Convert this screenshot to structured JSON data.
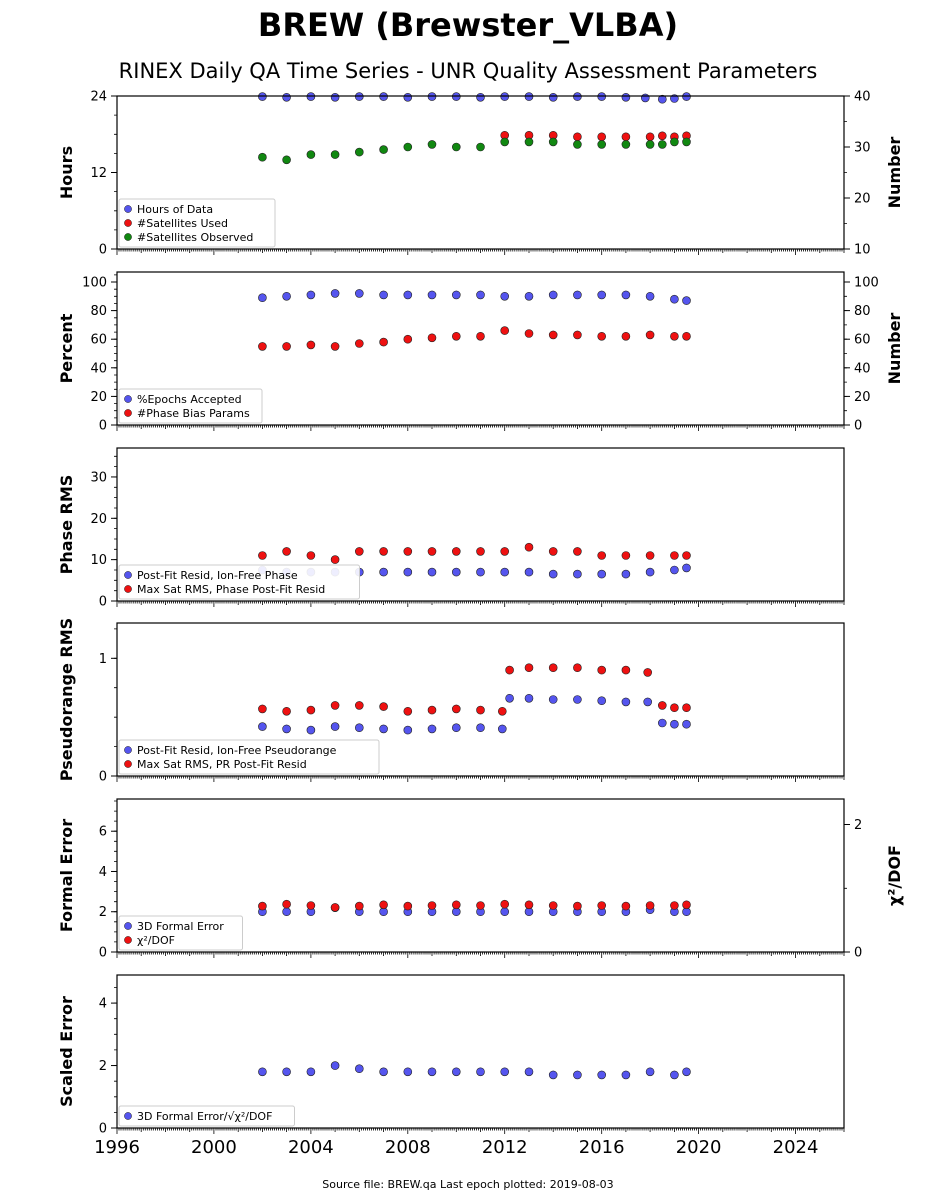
{
  "title": "BREW (Brewster_VLBA)",
  "subtitle": "RINEX Daily QA Time Series - UNR Quality Assessment Parameters",
  "footer": "Source file: BREW.qa Last epoch plotted: 2019-08-03",
  "colors": {
    "blue": "#5555ee",
    "red": "#ee1111",
    "green": "#118811",
    "edge": "#222222"
  },
  "chart_data": [
    {
      "type": "scatter",
      "ylabel": "Hours",
      "y2label": "Number",
      "xlim": [
        1996,
        2026
      ],
      "ylim": [
        0,
        24
      ],
      "y2lim": [
        10,
        40
      ],
      "yticks": [
        0,
        12,
        24
      ],
      "y2ticks": [
        10,
        20,
        30,
        40
      ],
      "legend": "lower-left",
      "series": [
        {
          "name": "Hours of Data",
          "color": "blue",
          "axis": "left",
          "x": [
            2002.0,
            2003.0,
            2004.0,
            2005.0,
            2006.0,
            2007.0,
            2008.0,
            2009.0,
            2010.0,
            2011.0,
            2012.0,
            2013.0,
            2014.0,
            2015.0,
            2016.0,
            2017.0,
            2017.8,
            2018.5,
            2019.0,
            2019.5
          ],
          "y": [
            23.9,
            23.8,
            23.9,
            23.8,
            23.9,
            23.9,
            23.8,
            23.9,
            23.9,
            23.8,
            23.9,
            23.9,
            23.8,
            23.9,
            23.9,
            23.8,
            23.7,
            23.5,
            23.6,
            23.9
          ]
        },
        {
          "name": "#Satellites Used",
          "color": "red",
          "axis": "right",
          "x": [
            2012.0,
            2013.0,
            2014.0,
            2015.0,
            2016.0,
            2017.0,
            2018.0,
            2018.5,
            2019.0,
            2019.5
          ],
          "y": [
            32.3,
            32.3,
            32.3,
            32.0,
            32.0,
            32.0,
            32.0,
            32.2,
            32.0,
            32.2
          ]
        },
        {
          "name": "#Satellites Observed",
          "color": "green",
          "axis": "right",
          "x": [
            2002.0,
            2003.0,
            2004.0,
            2005.0,
            2006.0,
            2007.0,
            2008.0,
            2009.0,
            2010.0,
            2011.0,
            2012.0,
            2013.0,
            2014.0,
            2015.0,
            2016.0,
            2017.0,
            2018.0,
            2018.5,
            2019.0,
            2019.5
          ],
          "y": [
            28.0,
            27.5,
            28.5,
            28.5,
            29.0,
            29.5,
            30.0,
            30.5,
            30.0,
            30.0,
            31.0,
            31.0,
            31.0,
            30.5,
            30.5,
            30.5,
            30.5,
            30.5,
            31.0,
            31.0
          ]
        }
      ]
    },
    {
      "type": "scatter",
      "ylabel": "Percent",
      "y2label": "Number",
      "xlim": [
        1996,
        2026
      ],
      "ylim": [
        0,
        107
      ],
      "yticks": [
        0,
        20,
        40,
        60,
        80,
        100
      ],
      "y2ticks": [
        0,
        20,
        40,
        60,
        80,
        100
      ],
      "legend": "lower-left",
      "series": [
        {
          "name": "%Epochs Accepted",
          "color": "blue",
          "axis": "left",
          "x": [
            2002.0,
            2003.0,
            2004.0,
            2005.0,
            2006.0,
            2007.0,
            2008.0,
            2009.0,
            2010.0,
            2011.0,
            2012.0,
            2013.0,
            2014.0,
            2015.0,
            2016.0,
            2017.0,
            2018.0,
            2019.0,
            2019.5
          ],
          "y": [
            89,
            90,
            91,
            92,
            92,
            91,
            91,
            91,
            91,
            91,
            90,
            90,
            91,
            91,
            91,
            91,
            90,
            88,
            87
          ]
        },
        {
          "name": "#Phase Bias Params",
          "color": "red",
          "axis": "right",
          "x": [
            2002.0,
            2003.0,
            2004.0,
            2005.0,
            2006.0,
            2007.0,
            2008.0,
            2009.0,
            2010.0,
            2011.0,
            2012.0,
            2013.0,
            2014.0,
            2015.0,
            2016.0,
            2017.0,
            2018.0,
            2019.0,
            2019.5
          ],
          "y": [
            55,
            55,
            56,
            55,
            57,
            58,
            60,
            61,
            62,
            62,
            66,
            64,
            63,
            63,
            62,
            62,
            63,
            62,
            62
          ]
        }
      ]
    },
    {
      "type": "scatter",
      "ylabel": "Phase RMS",
      "xlim": [
        1996,
        2026
      ],
      "ylim": [
        0,
        37
      ],
      "yticks": [
        0,
        10,
        20,
        30
      ],
      "legend": "lower-left",
      "series": [
        {
          "name": "Post-Fit Resid, Ion-Free Phase",
          "color": "blue",
          "axis": "left",
          "x": [
            2002.0,
            2003.0,
            2004.0,
            2005.0,
            2006.0,
            2007.0,
            2008.0,
            2009.0,
            2010.0,
            2011.0,
            2012.0,
            2013.0,
            2014.0,
            2015.0,
            2016.0,
            2017.0,
            2018.0,
            2019.0,
            2019.5
          ],
          "y": [
            7.5,
            7.0,
            7.0,
            7.0,
            7.0,
            7.0,
            7.0,
            7.0,
            7.0,
            7.0,
            7.0,
            7.0,
            6.5,
            6.5,
            6.5,
            6.5,
            7.0,
            7.5,
            8.0
          ]
        },
        {
          "name": "Max Sat RMS, Phase Post-Fit Resid",
          "color": "red",
          "axis": "left",
          "x": [
            2002.0,
            2003.0,
            2004.0,
            2005.0,
            2006.0,
            2007.0,
            2008.0,
            2009.0,
            2010.0,
            2011.0,
            2012.0,
            2013.0,
            2014.0,
            2015.0,
            2016.0,
            2017.0,
            2018.0,
            2019.0,
            2019.5
          ],
          "y": [
            11,
            12,
            11,
            10,
            12,
            12,
            12,
            12,
            12,
            12,
            12,
            13,
            12,
            12,
            11,
            11,
            11,
            11,
            11
          ]
        }
      ]
    },
    {
      "type": "scatter",
      "ylabel": "Pseudorange RMS",
      "xlim": [
        1996,
        2026
      ],
      "ylim": [
        0,
        1.3
      ],
      "yticks": [
        0,
        1
      ],
      "legend": "lower-left",
      "series": [
        {
          "name": "Post-Fit Resid, Ion-Free Pseudorange",
          "color": "blue",
          "axis": "left",
          "x": [
            2002.0,
            2003.0,
            2004.0,
            2005.0,
            2006.0,
            2007.0,
            2008.0,
            2009.0,
            2010.0,
            2011.0,
            2011.9,
            2012.2,
            2013.0,
            2014.0,
            2015.0,
            2016.0,
            2017.0,
            2017.9,
            2018.5,
            2019.0,
            2019.5
          ],
          "y": [
            0.42,
            0.4,
            0.39,
            0.42,
            0.41,
            0.4,
            0.39,
            0.4,
            0.41,
            0.41,
            0.4,
            0.66,
            0.66,
            0.65,
            0.65,
            0.64,
            0.63,
            0.63,
            0.45,
            0.44,
            0.44
          ]
        },
        {
          "name": "Max Sat RMS, PR Post-Fit Resid",
          "color": "red",
          "axis": "left",
          "x": [
            2002.0,
            2003.0,
            2004.0,
            2005.0,
            2006.0,
            2007.0,
            2008.0,
            2009.0,
            2010.0,
            2011.0,
            2011.9,
            2012.2,
            2013.0,
            2014.0,
            2015.0,
            2016.0,
            2017.0,
            2017.9,
            2018.5,
            2019.0,
            2019.5
          ],
          "y": [
            0.57,
            0.55,
            0.56,
            0.6,
            0.6,
            0.59,
            0.55,
            0.56,
            0.57,
            0.56,
            0.55,
            0.9,
            0.92,
            0.92,
            0.92,
            0.9,
            0.9,
            0.88,
            0.6,
            0.58,
            0.58
          ]
        }
      ]
    },
    {
      "type": "scatter",
      "ylabel": "Formal Error",
      "y2label": "χ²/DOF",
      "xlim": [
        1996,
        2026
      ],
      "ylim": [
        0,
        7.6
      ],
      "y2lim": [
        0,
        2.4
      ],
      "yticks": [
        0,
        2,
        4,
        6
      ],
      "y2ticks": [
        0,
        2
      ],
      "legend": "lower-left",
      "series": [
        {
          "name": "3D Formal Error",
          "color": "blue",
          "axis": "left",
          "x": [
            2002.0,
            2003.0,
            2004.0,
            2005.0,
            2006.0,
            2007.0,
            2008.0,
            2009.0,
            2010.0,
            2011.0,
            2012.0,
            2013.0,
            2014.0,
            2015.0,
            2016.0,
            2017.0,
            2018.0,
            2019.0,
            2019.5
          ],
          "y": [
            2.0,
            2.0,
            2.0,
            2.2,
            2.0,
            2.0,
            2.0,
            2.0,
            2.0,
            2.0,
            2.0,
            2.0,
            2.0,
            2.0,
            2.0,
            2.0,
            2.1,
            2.0,
            2.0
          ]
        },
        {
          "name": "χ²/DOF",
          "color": "red",
          "axis": "right",
          "x": [
            2002.0,
            2003.0,
            2004.0,
            2005.0,
            2006.0,
            2007.0,
            2008.0,
            2009.0,
            2010.0,
            2011.0,
            2012.0,
            2013.0,
            2014.0,
            2015.0,
            2016.0,
            2017.0,
            2018.0,
            2019.0,
            2019.5
          ],
          "y": [
            0.72,
            0.75,
            0.73,
            0.7,
            0.72,
            0.74,
            0.72,
            0.73,
            0.74,
            0.73,
            0.75,
            0.74,
            0.73,
            0.72,
            0.73,
            0.72,
            0.73,
            0.73,
            0.74
          ]
        }
      ]
    },
    {
      "type": "scatter",
      "ylabel": "Scaled Error",
      "xlim": [
        1996,
        2026
      ],
      "ylim": [
        0,
        4.9
      ],
      "yticks": [
        0,
        2,
        4
      ],
      "xticks": [
        1996,
        2000,
        2004,
        2008,
        2012,
        2016,
        2020,
        2024
      ],
      "legend": "lower-left",
      "series": [
        {
          "name": "3D Formal Error/√χ²/DOF",
          "color": "blue",
          "axis": "left",
          "x": [
            2002.0,
            2003.0,
            2004.0,
            2005.0,
            2006.0,
            2007.0,
            2008.0,
            2009.0,
            2010.0,
            2011.0,
            2012.0,
            2013.0,
            2014.0,
            2015.0,
            2016.0,
            2017.0,
            2018.0,
            2019.0,
            2019.5
          ],
          "y": [
            1.8,
            1.8,
            1.8,
            2.0,
            1.9,
            1.8,
            1.8,
            1.8,
            1.8,
            1.8,
            1.8,
            1.8,
            1.7,
            1.7,
            1.7,
            1.7,
            1.8,
            1.7,
            1.8
          ]
        }
      ]
    }
  ]
}
